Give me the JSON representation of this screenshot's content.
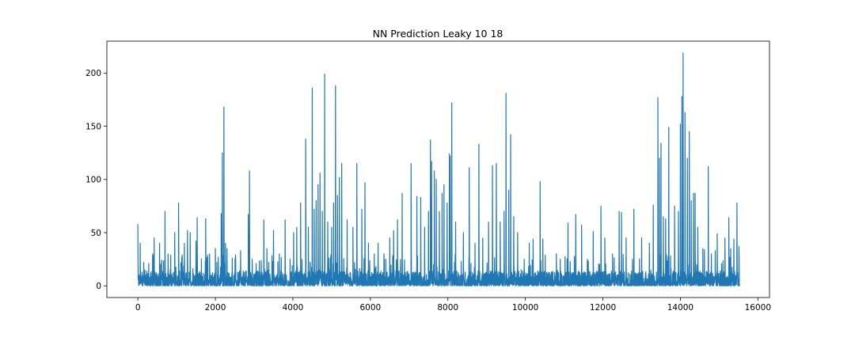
{
  "chart_data": {
    "type": "line",
    "title": "NN Prediction Leaky 10 18",
    "xlabel": "",
    "ylabel": "",
    "xlim": [
      -800,
      16300
    ],
    "ylim": [
      -11,
      230
    ],
    "x_ticks": [
      0,
      2000,
      4000,
      6000,
      8000,
      10000,
      12000,
      14000,
      16000
    ],
    "y_ticks": [
      0,
      50,
      100,
      150,
      200
    ],
    "x_tick_labels": [
      "0",
      "2000",
      "4000",
      "6000",
      "8000",
      "10000",
      "12000",
      "14000",
      "16000"
    ],
    "y_tick_labels": [
      "0",
      "50",
      "100",
      "150",
      "200"
    ],
    "grid": false,
    "legend": "none",
    "series": [
      {
        "color": "#1f77b4",
        "n_points": 15530,
        "baseline_range": [
          0,
          14
        ],
        "spikes": [
          [
            0,
            58
          ],
          [
            60,
            40
          ],
          [
            150,
            22
          ],
          [
            380,
            30
          ],
          [
            420,
            45
          ],
          [
            560,
            40
          ],
          [
            700,
            70
          ],
          [
            780,
            30
          ],
          [
            950,
            50
          ],
          [
            1050,
            78
          ],
          [
            1200,
            40
          ],
          [
            1280,
            52
          ],
          [
            1350,
            50
          ],
          [
            1500,
            42
          ],
          [
            1530,
            64
          ],
          [
            1750,
            63
          ],
          [
            1850,
            30
          ],
          [
            2000,
            35
          ],
          [
            2150,
            68
          ],
          [
            2180,
            125
          ],
          [
            2220,
            168
          ],
          [
            2260,
            40
          ],
          [
            2300,
            35
          ],
          [
            2650,
            33
          ],
          [
            2850,
            67
          ],
          [
            2880,
            108
          ],
          [
            2950,
            25
          ],
          [
            3250,
            62
          ],
          [
            3330,
            35
          ],
          [
            3500,
            52
          ],
          [
            3650,
            30
          ],
          [
            3800,
            62
          ],
          [
            4020,
            50
          ],
          [
            4100,
            55
          ],
          [
            4200,
            78
          ],
          [
            4330,
            138
          ],
          [
            4400,
            55
          ],
          [
            4500,
            186
          ],
          [
            4550,
            72
          ],
          [
            4600,
            80
          ],
          [
            4650,
            95
          ],
          [
            4700,
            106
          ],
          [
            4760,
            70
          ],
          [
            4820,
            199
          ],
          [
            4900,
            60
          ],
          [
            5000,
            55
          ],
          [
            5050,
            78
          ],
          [
            5100,
            188
          ],
          [
            5150,
            85
          ],
          [
            5200,
            102
          ],
          [
            5260,
            115
          ],
          [
            5400,
            62
          ],
          [
            5550,
            55
          ],
          [
            5650,
            115
          ],
          [
            5780,
            72
          ],
          [
            5860,
            97
          ],
          [
            5950,
            40
          ],
          [
            6100,
            30
          ],
          [
            6200,
            40
          ],
          [
            6350,
            30
          ],
          [
            6400,
            25
          ],
          [
            6500,
            45
          ],
          [
            6600,
            52
          ],
          [
            6700,
            62
          ],
          [
            6820,
            87
          ],
          [
            7050,
            115
          ],
          [
            7200,
            84
          ],
          [
            7300,
            83
          ],
          [
            7400,
            55
          ],
          [
            7500,
            70
          ],
          [
            7550,
            137
          ],
          [
            7580,
            117
          ],
          [
            7650,
            108
          ],
          [
            7700,
            100
          ],
          [
            7780,
            70
          ],
          [
            7850,
            87
          ],
          [
            7900,
            95
          ],
          [
            7980,
            78
          ],
          [
            8040,
            124
          ],
          [
            8060,
            122
          ],
          [
            8100,
            172
          ],
          [
            8200,
            60
          ],
          [
            8400,
            50
          ],
          [
            8550,
            111
          ],
          [
            8700,
            40
          ],
          [
            8800,
            133
          ],
          [
            8900,
            45
          ],
          [
            9050,
            60
          ],
          [
            9150,
            113
          ],
          [
            9250,
            115
          ],
          [
            9350,
            60
          ],
          [
            9450,
            70
          ],
          [
            9500,
            181
          ],
          [
            9570,
            90
          ],
          [
            9620,
            142
          ],
          [
            9700,
            65
          ],
          [
            9800,
            50
          ],
          [
            9970,
            25
          ],
          [
            10100,
            40
          ],
          [
            10200,
            44
          ],
          [
            10380,
            98
          ],
          [
            10450,
            44
          ],
          [
            10800,
            30
          ],
          [
            10900,
            25
          ],
          [
            11100,
            59
          ],
          [
            11300,
            67
          ],
          [
            11450,
            57
          ],
          [
            11600,
            25
          ],
          [
            11750,
            51
          ],
          [
            11950,
            75
          ],
          [
            12050,
            45
          ],
          [
            12250,
            30
          ],
          [
            12420,
            70
          ],
          [
            12480,
            69
          ],
          [
            12600,
            45
          ],
          [
            12800,
            72
          ],
          [
            13000,
            45
          ],
          [
            13200,
            40
          ],
          [
            13300,
            76
          ],
          [
            13420,
            177
          ],
          [
            13460,
            120
          ],
          [
            13500,
            134
          ],
          [
            13560,
            65
          ],
          [
            13620,
            63
          ],
          [
            13700,
            149
          ],
          [
            13850,
            75
          ],
          [
            13950,
            70
          ],
          [
            14000,
            152
          ],
          [
            14040,
            178
          ],
          [
            14070,
            219
          ],
          [
            14120,
            163
          ],
          [
            14180,
            120
          ],
          [
            14230,
            145
          ],
          [
            14280,
            80
          ],
          [
            14340,
            87
          ],
          [
            14380,
            87
          ],
          [
            14450,
            55
          ],
          [
            14580,
            35
          ],
          [
            14620,
            34
          ],
          [
            14720,
            112
          ],
          [
            14800,
            30
          ],
          [
            14900,
            33
          ],
          [
            14950,
            49
          ],
          [
            15150,
            45
          ],
          [
            15250,
            64
          ],
          [
            15300,
            35
          ],
          [
            15380,
            44
          ],
          [
            15460,
            78
          ],
          [
            15510,
            37
          ]
        ]
      }
    ]
  }
}
